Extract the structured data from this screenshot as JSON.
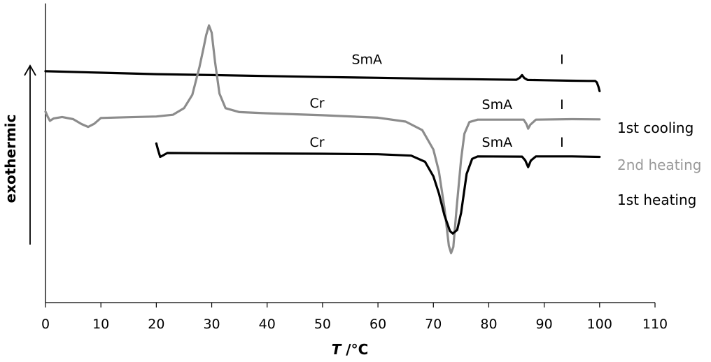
{
  "chart_data": {
    "type": "line",
    "title": "",
    "xlabel_var": "T",
    "xlabel_unit": " /°C",
    "ylabel": "exothermic",
    "xlim": [
      0,
      110
    ],
    "x_ticks": [
      0,
      10,
      20,
      30,
      40,
      50,
      60,
      70,
      80,
      90,
      100,
      110
    ],
    "grid": false,
    "y_axis_note": "Arbitrary heat-flow offset units; curves vertically offset for clarity",
    "series": [
      {
        "name": "1st cooling",
        "color": "#000000",
        "legend_color": "#000000",
        "points": [
          [
            0,
            94.2
          ],
          [
            10,
            93.6
          ],
          [
            20,
            93.0
          ],
          [
            30,
            92.6
          ],
          [
            40,
            92.2
          ],
          [
            50,
            91.8
          ],
          [
            60,
            91.5
          ],
          [
            70,
            91.1
          ],
          [
            80,
            90.8
          ],
          [
            85,
            90.7
          ],
          [
            85.6,
            91.5
          ],
          [
            86.0,
            92.6
          ],
          [
            86.4,
            91.4
          ],
          [
            87.0,
            90.6
          ],
          [
            90,
            90.5
          ],
          [
            95,
            90.3
          ],
          [
            98,
            90.2
          ],
          [
            99.2,
            90.2
          ],
          [
            99.5,
            89.6
          ],
          [
            99.8,
            87.8
          ],
          [
            100,
            86.0
          ]
        ],
        "labels": [
          {
            "text": "SmA",
            "x": 58,
            "y": 97.2
          },
          {
            "text": "I",
            "x": 93.2,
            "y": 97.2
          }
        ]
      },
      {
        "name": "2nd heating",
        "color": "#8c8c8c",
        "legend_color": "#999999",
        "points": [
          [
            0,
            77.6
          ],
          [
            0.4,
            75.5
          ],
          [
            0.8,
            73.8
          ],
          [
            1.5,
            74.8
          ],
          [
            3,
            75.4
          ],
          [
            5,
            74.5
          ],
          [
            6.5,
            72.5
          ],
          [
            7.7,
            71.3
          ],
          [
            8.8,
            72.6
          ],
          [
            10,
            75.0
          ],
          [
            15,
            75.3
          ],
          [
            20,
            75.6
          ],
          [
            23,
            76.3
          ],
          [
            25,
            79.0
          ],
          [
            26.5,
            84.5
          ],
          [
            27.8,
            96.0
          ],
          [
            28.5,
            103.5
          ],
          [
            29.0,
            109.0
          ],
          [
            29.5,
            113.0
          ],
          [
            30.0,
            110.0
          ],
          [
            30.6,
            98.0
          ],
          [
            31.4,
            85.0
          ],
          [
            32.5,
            79.0
          ],
          [
            35,
            77.4
          ],
          [
            40,
            76.9
          ],
          [
            50,
            76.1
          ],
          [
            60,
            75.1
          ],
          [
            65,
            73.5
          ],
          [
            68,
            70.0
          ],
          [
            70,
            62.0
          ],
          [
            71,
            53.0
          ],
          [
            72,
            38.0
          ],
          [
            72.8,
            22.5
          ],
          [
            73.2,
            19.5
          ],
          [
            73.6,
            22.0
          ],
          [
            74.2,
            38.0
          ],
          [
            75,
            58.0
          ],
          [
            75.6,
            68.5
          ],
          [
            76.5,
            73.3
          ],
          [
            78,
            74.3
          ],
          [
            86.3,
            74.3
          ],
          [
            86.8,
            72.5
          ],
          [
            87.1,
            70.6
          ],
          [
            87.5,
            72.2
          ],
          [
            88.5,
            74.3
          ],
          [
            95,
            74.5
          ],
          [
            100,
            74.4
          ]
        ],
        "labels": [
          {
            "text": "Cr",
            "x": 49,
            "y": 79.2
          },
          {
            "text": "SmA",
            "x": 81.5,
            "y": 78.6
          },
          {
            "text": "I",
            "x": 93.2,
            "y": 78.6
          }
        ]
      },
      {
        "name": "1st heating",
        "color": "#000000",
        "legend_color": "#000000",
        "points": [
          [
            20.0,
            64.5
          ],
          [
            20.3,
            62.0
          ],
          [
            20.7,
            59.0
          ],
          [
            21.2,
            59.6
          ],
          [
            22,
            60.6
          ],
          [
            30,
            60.5
          ],
          [
            40,
            60.4
          ],
          [
            50,
            60.3
          ],
          [
            60,
            60.1
          ],
          [
            66,
            59.5
          ],
          [
            68.5,
            57.0
          ],
          [
            70,
            51.0
          ],
          [
            71,
            44.0
          ],
          [
            72,
            35.0
          ],
          [
            73,
            28.5
          ],
          [
            73.5,
            27.5
          ],
          [
            74.3,
            29.0
          ],
          [
            75,
            36.0
          ],
          [
            76,
            52.0
          ],
          [
            77,
            58.2
          ],
          [
            78,
            59.2
          ],
          [
            86,
            59.1
          ],
          [
            86.6,
            57.5
          ],
          [
            87.1,
            54.8
          ],
          [
            87.6,
            57.5
          ],
          [
            88.5,
            59.2
          ],
          [
            95,
            59.2
          ],
          [
            100,
            59.0
          ]
        ],
        "labels": [
          {
            "text": "Cr",
            "x": 49,
            "y": 63.2
          },
          {
            "text": "SmA",
            "x": 81.5,
            "y": 63.2
          },
          {
            "text": "I",
            "x": 93.2,
            "y": 63.2
          }
        ]
      }
    ],
    "legend": [
      {
        "text": "1st cooling",
        "series": 0
      },
      {
        "text": "2nd heating",
        "series": 1
      },
      {
        "text": "1st heating",
        "series": 2
      }
    ]
  }
}
